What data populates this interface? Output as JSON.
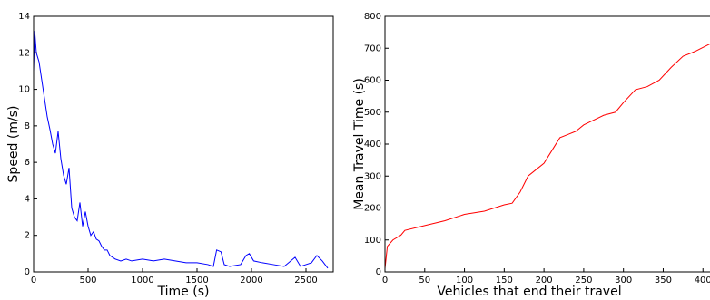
{
  "chart_data": [
    {
      "type": "line",
      "x_label": "Time (s)",
      "y_label": "Speed (m/s)",
      "xlim": [
        0,
        2750
      ],
      "ylim": [
        0,
        14
      ],
      "xticks": [
        0,
        500,
        1000,
        1500,
        2000,
        2500
      ],
      "yticks": [
        0,
        2,
        4,
        6,
        8,
        10,
        12,
        14
      ],
      "series": [
        {
          "color": "#0000ff",
          "x": [
            0,
            10,
            25,
            50,
            75,
            100,
            125,
            150,
            175,
            200,
            225,
            250,
            275,
            300,
            325,
            350,
            375,
            400,
            425,
            450,
            475,
            500,
            525,
            550,
            575,
            600,
            625,
            650,
            675,
            700,
            750,
            800,
            850,
            900,
            1000,
            1100,
            1200,
            1300,
            1400,
            1500,
            1600,
            1650,
            1680,
            1720,
            1750,
            1800,
            1900,
            1950,
            1980,
            2020,
            2100,
            2200,
            2300,
            2400,
            2450,
            2550,
            2600,
            2650,
            2700
          ],
          "values": [
            11,
            13.2,
            12,
            11.5,
            10.5,
            9.5,
            8.5,
            7.8,
            7,
            6.5,
            7.7,
            6.2,
            5.3,
            4.8,
            5.7,
            3.5,
            3.0,
            2.8,
            3.8,
            2.5,
            3.3,
            2.5,
            2.0,
            2.2,
            1.8,
            1.7,
            1.4,
            1.2,
            1.2,
            0.9,
            0.7,
            0.6,
            0.7,
            0.6,
            0.7,
            0.6,
            0.7,
            0.6,
            0.5,
            0.5,
            0.4,
            0.3,
            1.2,
            1.1,
            0.4,
            0.3,
            0.4,
            0.9,
            1.0,
            0.6,
            0.5,
            0.4,
            0.3,
            0.8,
            0.3,
            0.5,
            0.9,
            0.6,
            0.2
          ]
        }
      ]
    },
    {
      "type": "line",
      "x_label": "Vehicles that end their travel",
      "y_label": "Mean Travel Time (s)",
      "xlim": [
        0,
        410
      ],
      "ylim": [
        0,
        800
      ],
      "xticks": [
        0,
        50,
        100,
        150,
        200,
        250,
        300,
        350,
        400
      ],
      "yticks": [
        0,
        100,
        200,
        300,
        400,
        500,
        600,
        700,
        800
      ],
      "series": [
        {
          "color": "#ff0000",
          "x": [
            0,
            3,
            10,
            20,
            25,
            50,
            75,
            100,
            125,
            150,
            160,
            170,
            180,
            190,
            200,
            210,
            220,
            230,
            240,
            250,
            275,
            290,
            300,
            315,
            330,
            345,
            360,
            375,
            390,
            410
          ],
          "values": [
            10,
            80,
            100,
            115,
            130,
            145,
            160,
            180,
            190,
            210,
            215,
            250,
            300,
            320,
            340,
            380,
            420,
            430,
            440,
            460,
            490,
            500,
            530,
            570,
            580,
            600,
            640,
            675,
            690,
            715
          ]
        }
      ]
    }
  ]
}
